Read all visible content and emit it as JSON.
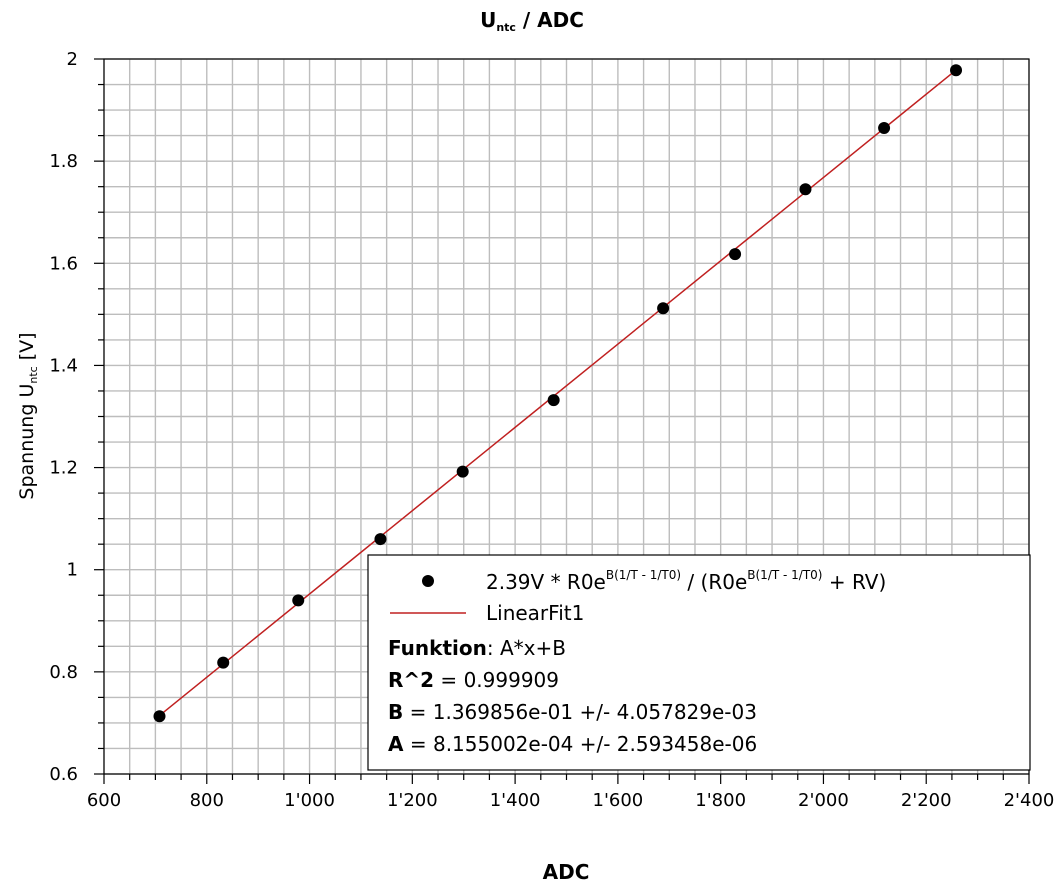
{
  "chart_data": {
    "type": "scatter",
    "title": {
      "main": "U",
      "sub": "ntc",
      "suffix": " / ADC"
    },
    "xlabel": "ADC",
    "ylabel": {
      "main": "Spannung U",
      "sub": "ntc",
      "suffix": " [V]"
    },
    "xlim": [
      600,
      2400
    ],
    "ylim": [
      0.6,
      2.0
    ],
    "x_ticks": [
      {
        "v": 600,
        "label": "600"
      },
      {
        "v": 800,
        "label": "800"
      },
      {
        "v": 1000,
        "label": "1'000"
      },
      {
        "v": 1200,
        "label": "1'200"
      },
      {
        "v": 1400,
        "label": "1'400"
      },
      {
        "v": 1600,
        "label": "1'600"
      },
      {
        "v": 1800,
        "label": "1'800"
      },
      {
        "v": 2000,
        "label": "2'000"
      },
      {
        "v": 2200,
        "label": "2'200"
      },
      {
        "v": 2400,
        "label": "2'400"
      }
    ],
    "y_ticks": [
      {
        "v": 0.6,
        "label": "0.6"
      },
      {
        "v": 0.8,
        "label": "0.8"
      },
      {
        "v": 1.0,
        "label": "1"
      },
      {
        "v": 1.2,
        "label": "1.2"
      },
      {
        "v": 1.4,
        "label": "1.4"
      },
      {
        "v": 1.6,
        "label": "1.6"
      },
      {
        "v": 1.8,
        "label": "1.8"
      },
      {
        "v": 2.0,
        "label": "2"
      }
    ],
    "grid": true,
    "legend_position": "bottom-right",
    "series": [
      {
        "name": {
          "p1": "2.39V * R0e",
          "sup1": "B(1/T - 1/T0)",
          "p2": " / (R0e",
          "sup2": "B(1/T - 1/T0)",
          "p3": " + RV)"
        },
        "kind": "scatter",
        "color": "#000000",
        "x": [
          708,
          832,
          978,
          1138,
          1298,
          1475,
          1688,
          1828,
          1965,
          2118,
          2258
        ],
        "y": [
          0.713,
          0.818,
          0.94,
          1.06,
          1.192,
          1.332,
          1.512,
          1.618,
          1.745,
          1.865,
          1.978
        ]
      },
      {
        "name": "LinearFit1",
        "kind": "line",
        "color": "#c02020",
        "slope": 0.0008155002,
        "intercept": 0.1369856,
        "x_range": [
          708,
          2258
        ]
      }
    ],
    "fit_info": [
      {
        "key": "Funktion",
        "sep": ": ",
        "value": "A*x+B"
      },
      {
        "key": "R^2",
        "sep": " = ",
        "value": "0.999909"
      },
      {
        "key": "B",
        "sep": " = ",
        "value": "1.369856e-01 +/- 4.057829e-03"
      },
      {
        "key": "A",
        "sep": " = ",
        "value": "8.155002e-04 +/- 2.593458e-06"
      }
    ]
  }
}
